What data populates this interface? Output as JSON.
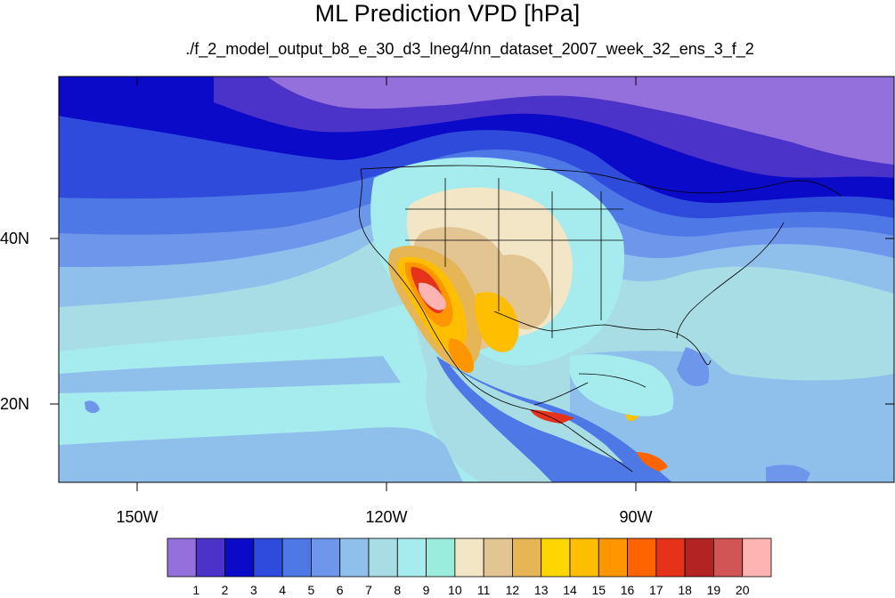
{
  "title": "ML Prediction VPD [hPa]",
  "subtitle": "./f_2_model_output_b8_e_30_d3_lneg4/nn_dataset_2007_week_32_ens_3_f_2",
  "axes": {
    "lat_ticks": [
      "40N",
      "20N"
    ],
    "lon_ticks": [
      "150W",
      "120W",
      "90W"
    ]
  },
  "colorbar": {
    "colors": [
      "#9370db",
      "#4b32c8",
      "#0a0ac8",
      "#2f4bdc",
      "#4e78e6",
      "#6e96eb",
      "#8fc0ec",
      "#a8dde6",
      "#a6ecef",
      "#9aecdc",
      "#f2e6c6",
      "#e3c493",
      "#e6b656",
      "#ffd700",
      "#ffbf00",
      "#ff9600",
      "#ff6400",
      "#e63219",
      "#b42323",
      "#d25555",
      "#ffb4b4"
    ],
    "labels": [
      "1",
      "2",
      "3",
      "4",
      "5",
      "6",
      "7",
      "8",
      "9",
      "10",
      "11",
      "12",
      "13",
      "14",
      "15",
      "16",
      "17",
      "18",
      "19",
      "20"
    ]
  },
  "chart_data": {
    "type": "heatmap",
    "title": "ML Prediction VPD [hPa]",
    "subtitle": "./f_2_model_output_b8_e_30_d3_lneg4/nn_dataset_2007_week_32_ens_3_f_2",
    "variable_units": "hPa",
    "lon_range": [
      -160,
      -60
    ],
    "lat_range": [
      10,
      59
    ],
    "contour_levels": [
      1,
      2,
      3,
      4,
      5,
      6,
      7,
      8,
      9,
      10,
      11,
      12,
      13,
      14,
      15,
      16,
      17,
      18,
      19,
      20
    ],
    "max_region": "southwestern US / Baja California (~19-20+ hPa)",
    "min_region": "northern Pacific and Canada (<1-2 hPa)"
  }
}
